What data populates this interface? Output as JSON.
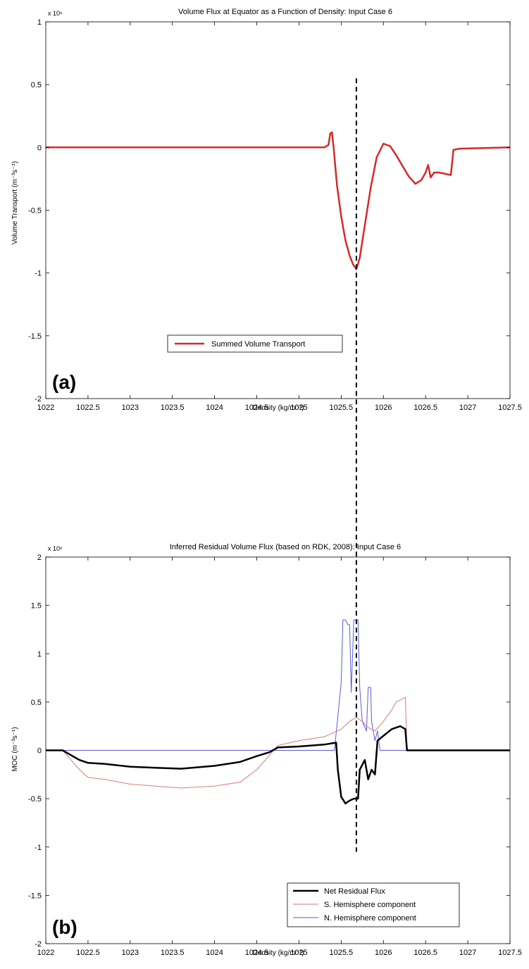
{
  "chart_data": [
    {
      "type": "line",
      "panel_label": "(a)",
      "title": "Volume Flux at Equator as a Function of Density: Input Case 6",
      "xlabel": "Density (kg/m⁻³)",
      "ylabel": "Volume Transport (m⁻³s⁻¹)",
      "y_multiplier": "x 10⁶",
      "xlim": [
        1022,
        1027.5
      ],
      "ylim": [
        -2,
        1
      ],
      "xticks": [
        1022,
        1022.5,
        1023,
        1023.5,
        1024,
        1024.5,
        1025,
        1025.5,
        1026,
        1026.5,
        1027,
        1027.5
      ],
      "xtick_labels": [
        "1022",
        "1022.5",
        "1023",
        "1023.5",
        "1024",
        "1024.5",
        "1025",
        "1025.5",
        "1026",
        "1026.5",
        "1027",
        "1027.5"
      ],
      "yticks": [
        1,
        0.5,
        0,
        -0.5,
        -1,
        -1.5,
        -2
      ],
      "ytick_labels": [
        "1",
        "0.5",
        "0",
        "-0.5",
        "-1",
        "-1.5",
        "-2"
      ],
      "grid": false,
      "legend_position": "lower-center",
      "vline_x": 1025.68,
      "series": [
        {
          "name": "Summed Volume Transport",
          "color": "#d42a2a",
          "x": [
            1022,
            1025.3,
            1025.35,
            1025.37,
            1025.39,
            1025.41,
            1025.45,
            1025.5,
            1025.55,
            1025.6,
            1025.64,
            1025.68,
            1025.72,
            1025.78,
            1025.85,
            1025.92,
            1026.0,
            1026.08,
            1026.15,
            1026.22,
            1026.3,
            1026.38,
            1026.45,
            1026.5,
            1026.53,
            1026.56,
            1026.6,
            1026.66,
            1026.8,
            1026.83,
            1026.9,
            1027.5
          ],
          "y": [
            0,
            0,
            0.02,
            0.11,
            0.12,
            0.0,
            -0.3,
            -0.55,
            -0.74,
            -0.86,
            -0.93,
            -0.97,
            -0.88,
            -0.62,
            -0.32,
            -0.08,
            0.03,
            0.01,
            -0.06,
            -0.14,
            -0.23,
            -0.29,
            -0.26,
            -0.2,
            -0.14,
            -0.24,
            -0.2,
            -0.2,
            -0.22,
            -0.02,
            -0.01,
            0
          ]
        }
      ]
    },
    {
      "type": "line",
      "panel_label": "(b)",
      "title": "Inferred Residual Volume Flux (based on RDK, 2008): Input Case 6",
      "xlabel": "Density (kg/m⁻³)",
      "ylabel": "MOC (m⁻³s⁻¹)",
      "y_multiplier": "x 10⁶",
      "xlim": [
        1022,
        1027.5
      ],
      "ylim": [
        -2,
        2
      ],
      "xticks": [
        1022,
        1022.5,
        1023,
        1023.5,
        1024,
        1024.5,
        1025,
        1025.5,
        1026,
        1026.5,
        1027,
        1027.5
      ],
      "xtick_labels": [
        "1022",
        "1022.5",
        "1023",
        "1023.5",
        "1024",
        "1024.5",
        "1025",
        "1025.5",
        "1026",
        "1026.5",
        "1027",
        "1027.5"
      ],
      "yticks": [
        2,
        1.5,
        1,
        0.5,
        0,
        -0.5,
        -1,
        -1.5,
        -2
      ],
      "ytick_labels": [
        "2",
        "1.5",
        "1",
        "0.5",
        "0",
        "-0.5",
        "-1",
        "-1.5",
        "-2"
      ],
      "grid": false,
      "legend_position": "lower-right",
      "vline_x": 1025.68,
      "series": [
        {
          "name": "Net Residual Flux",
          "color": "#000000",
          "x": [
            1022,
            1022.2,
            1022.3,
            1022.4,
            1022.5,
            1022.7,
            1023.0,
            1023.3,
            1023.6,
            1024.0,
            1024.3,
            1024.5,
            1024.65,
            1024.75,
            1025.0,
            1025.3,
            1025.44,
            1025.46,
            1025.5,
            1025.55,
            1025.6,
            1025.65,
            1025.7,
            1025.72,
            1025.78,
            1025.82,
            1025.86,
            1025.9,
            1025.93,
            1026.0,
            1026.1,
            1026.2,
            1026.26,
            1026.28,
            1026.5,
            1027.5
          ],
          "y": [
            0,
            0,
            -0.05,
            -0.1,
            -0.13,
            -0.14,
            -0.17,
            -0.18,
            -0.19,
            -0.16,
            -0.12,
            -0.06,
            -0.02,
            0.03,
            0.04,
            0.06,
            0.08,
            -0.2,
            -0.48,
            -0.55,
            -0.52,
            -0.5,
            -0.5,
            -0.2,
            -0.1,
            -0.3,
            -0.2,
            -0.25,
            0.1,
            0.15,
            0.22,
            0.25,
            0.22,
            0,
            0,
            0
          ]
        },
        {
          "name": "S. Hemisphere component",
          "color": "#d97a7a",
          "x": [
            1022,
            1022.2,
            1022.3,
            1022.4,
            1022.5,
            1022.7,
            1023.0,
            1023.3,
            1023.6,
            1024.0,
            1024.3,
            1024.5,
            1024.65,
            1024.75,
            1025.0,
            1025.3,
            1025.5,
            1025.6,
            1025.68,
            1025.75,
            1025.8,
            1025.85,
            1025.9,
            1026.0,
            1026.1,
            1026.15,
            1026.2,
            1026.26,
            1026.28,
            1026.5,
            1027.5
          ],
          "y": [
            0,
            0,
            -0.1,
            -0.2,
            -0.28,
            -0.3,
            -0.35,
            -0.37,
            -0.39,
            -0.37,
            -0.33,
            -0.2,
            -0.05,
            0.05,
            0.1,
            0.14,
            0.22,
            0.3,
            0.34,
            0.3,
            0.25,
            0.22,
            0.2,
            0.3,
            0.42,
            0.5,
            0.52,
            0.55,
            0,
            0,
            0
          ]
        },
        {
          "name": "N. Hemisphere component",
          "color": "#5a5ad8",
          "x": [
            1022,
            1025.42,
            1025.46,
            1025.5,
            1025.52,
            1025.55,
            1025.58,
            1025.6,
            1025.62,
            1025.65,
            1025.7,
            1025.72,
            1025.75,
            1025.8,
            1025.82,
            1025.85,
            1025.86,
            1025.9,
            1025.93,
            1025.96,
            1026.0,
            1027.5
          ],
          "y": [
            0,
            0,
            0.35,
            0.7,
            1.35,
            1.35,
            1.3,
            1.3,
            0.6,
            1.35,
            1.35,
            0.65,
            0.3,
            0.2,
            0.65,
            0.65,
            0.3,
            0.1,
            0.2,
            0,
            0,
            0
          ]
        }
      ]
    }
  ]
}
